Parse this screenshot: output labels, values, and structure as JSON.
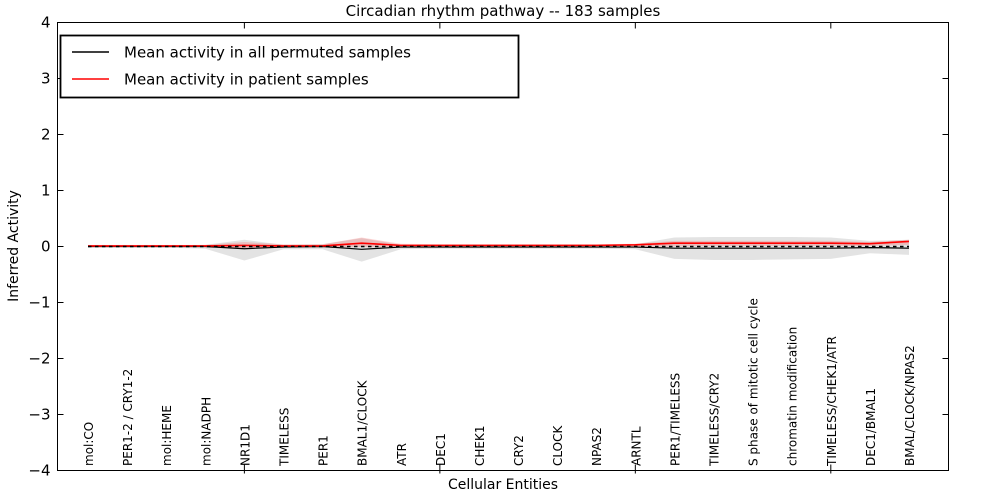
{
  "figure": {
    "title": "Circadian rhythm pathway -- 183 samples",
    "xlabel": "Cellular Entities",
    "ylabel": "Inferred Activity"
  },
  "chart_data": {
    "type": "line",
    "title": "Circadian rhythm pathway -- 183 samples",
    "xlabel": "Cellular Entities",
    "ylabel": "Inferred Activity",
    "ylim": [
      -4,
      4
    ],
    "yticks": [
      -4,
      -3,
      -2,
      -1,
      0,
      1,
      2,
      3,
      4
    ],
    "x_axis_tick_category_indices": [
      4,
      9,
      14,
      19
    ],
    "grid": false,
    "legend_position": "upper left",
    "background_color": "#ffffff",
    "categories": [
      "mol:CO",
      "PER1-2 / CRY1-2",
      "mol:HEME",
      "mol:NADPH",
      "NR1D1",
      "TIMELESS",
      "PER1",
      "BMAL1/CLOCK",
      "ATR",
      "DEC1",
      "CHEK1",
      "CRY2",
      "CLOCK",
      "NPAS2",
      "ARNTL",
      "PER1/TIMELESS",
      "TIMELESS/CRY2",
      "S phase of mitotic cell cycle",
      "chromatin modification",
      "TIMELESS/CHEK1/ATR",
      "DEC1/BMAL1",
      "BMAL/CLOCK/NPAS2"
    ],
    "zero_line": {
      "value": 0,
      "color": "#000000",
      "style": "dashed"
    },
    "series": [
      {
        "name": "Mean activity in all permuted samples",
        "color": "#000000",
        "style": "solid",
        "values": [
          0.0,
          0.0,
          0.0,
          0.0,
          -0.04,
          -0.01,
          0.0,
          -0.05,
          -0.01,
          -0.01,
          -0.01,
          -0.01,
          -0.01,
          -0.01,
          -0.01,
          -0.03,
          -0.03,
          -0.03,
          -0.03,
          -0.03,
          -0.02,
          -0.03
        ]
      },
      {
        "name": "Mean activity in patient samples",
        "color": "#ff0000",
        "style": "solid",
        "values": [
          0.01,
          0.01,
          0.01,
          0.01,
          0.02,
          0.01,
          0.01,
          0.06,
          0.02,
          0.02,
          0.02,
          0.02,
          0.02,
          0.02,
          0.03,
          0.06,
          0.06,
          0.06,
          0.06,
          0.06,
          0.05,
          0.09
        ]
      }
    ],
    "bands": [
      {
        "name": "permuted samples spread",
        "color": "rgba(128,128,128,0.22)",
        "upper": [
          0.02,
          0.02,
          0.02,
          0.03,
          0.12,
          0.03,
          0.04,
          0.15,
          0.03,
          0.03,
          0.03,
          0.03,
          0.03,
          0.03,
          0.04,
          0.16,
          0.17,
          0.17,
          0.17,
          0.16,
          0.1,
          0.12
        ],
        "lower": [
          -0.02,
          -0.02,
          -0.02,
          -0.04,
          -0.25,
          -0.05,
          -0.05,
          -0.27,
          -0.05,
          -0.04,
          -0.04,
          -0.04,
          -0.04,
          -0.04,
          -0.05,
          -0.22,
          -0.24,
          -0.24,
          -0.23,
          -0.22,
          -0.12,
          -0.15
        ]
      },
      {
        "name": "patient samples spread",
        "color": "rgba(255,0,0,0.16)",
        "upper": [
          0.03,
          0.03,
          0.03,
          0.03,
          0.08,
          0.04,
          0.04,
          0.16,
          0.05,
          0.04,
          0.04,
          0.04,
          0.04,
          0.04,
          0.05,
          0.1,
          0.1,
          0.1,
          0.1,
          0.1,
          0.08,
          0.12
        ],
        "lower": [
          -0.01,
          -0.01,
          -0.01,
          -0.01,
          -0.03,
          -0.01,
          -0.01,
          -0.01,
          -0.01,
          -0.01,
          -0.01,
          -0.01,
          -0.01,
          -0.01,
          -0.01,
          0.0,
          0.01,
          0.01,
          0.01,
          0.01,
          0.01,
          0.03
        ]
      }
    ],
    "legend": [
      {
        "label": "Mean activity in all permuted samples",
        "color": "#000000"
      },
      {
        "label": "Mean activity in patient samples",
        "color": "#ff0000"
      }
    ]
  }
}
